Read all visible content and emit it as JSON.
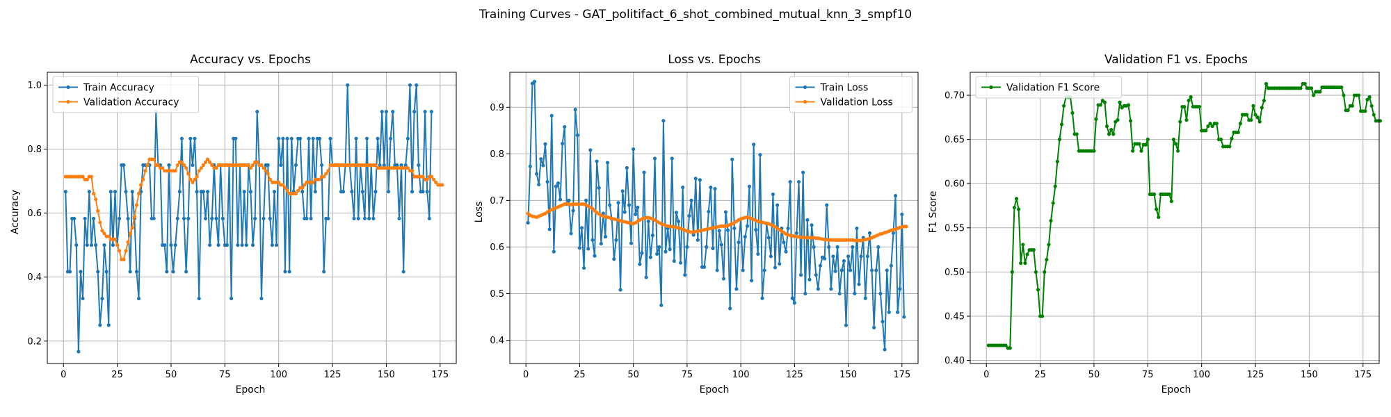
{
  "figure": {
    "suptitle": "Training Curves - GAT_politifact_6_shot_combined_mutual_knn_3_smpf10"
  },
  "chart_data": [
    {
      "type": "line",
      "title": "Accuracy vs. Epochs",
      "xlabel": "Epoch",
      "ylabel": "Accuracy",
      "xlim": [
        -7.5,
        182.5
      ],
      "ylim": [
        0.13,
        1.04
      ],
      "xticks": [
        0,
        25,
        50,
        75,
        100,
        125,
        150,
        175
      ],
      "yticks": [
        0.2,
        0.4,
        0.6,
        0.8,
        1.0
      ],
      "ytick_labels": [
        "0.2",
        "0.4",
        "0.6",
        "0.8",
        "1.0"
      ],
      "grid": true,
      "legend": "upper-left",
      "series": [
        {
          "name": "Train Accuracy",
          "color": "#1f77b4",
          "x_start": 1,
          "values": [
            0.667,
            0.417,
            0.417,
            0.583,
            0.583,
            0.5,
            0.167,
            0.417,
            0.333,
            0.583,
            0.5,
            0.667,
            0.5,
            0.583,
            0.5,
            0.417,
            0.25,
            0.333,
            0.5,
            0.417,
            0.25,
            0.667,
            0.5,
            0.667,
            0.5,
            0.583,
            0.75,
            0.75,
            0.667,
            0.583,
            0.417,
            0.667,
            0.583,
            0.417,
            0.333,
            0.667,
            0.75,
            0.75,
            0.75,
            0.75,
            0.583,
            0.583,
            0.917,
            0.75,
            0.75,
            0.5,
            0.5,
            0.417,
            0.75,
            0.5,
            0.417,
            0.5,
            0.583,
            0.667,
            0.833,
            0.583,
            0.417,
            0.583,
            0.833,
            0.75,
            0.833,
            0.667,
            0.333,
            0.667,
            0.667,
            0.583,
            0.667,
            0.5,
            0.583,
            0.75,
            0.583,
            0.5,
            0.75,
            0.583,
            0.5,
            0.5,
            0.75,
            0.333,
            0.833,
            0.833,
            0.5,
            0.75,
            0.5,
            0.667,
            0.5,
            0.75,
            0.667,
            0.5,
            0.583,
            0.917,
            0.75,
            0.333,
            0.583,
            0.75,
            0.75,
            0.583,
            0.5,
            0.667,
            0.5,
            0.833,
            0.75,
            0.833,
            0.417,
            0.833,
            0.417,
            0.833,
            0.667,
            0.75,
            0.833,
            0.833,
            0.667,
            0.583,
            0.583,
            0.833,
            0.583,
            0.833,
            0.667,
            0.833,
            0.833,
            0.75,
            0.417,
            0.583,
            0.583,
            0.833,
            0.75,
            0.75,
            0.75,
            0.75,
            0.667,
            0.667,
            0.75,
            1.0,
            0.75,
            0.667,
            0.583,
            0.833,
            0.583,
            0.75,
            0.667,
            0.583,
            0.833,
            0.583,
            0.75,
            0.583,
            0.667,
            0.833,
            0.75,
            0.917,
            0.75,
            0.917,
            0.667,
            0.833,
            0.917,
            0.75,
            0.75,
            0.583,
            0.75,
            0.417,
            0.75,
            0.833,
            1.0,
            0.667,
            0.917,
            1.0,
            0.75,
            0.667,
            0.667,
            0.917,
            0.667,
            0.583,
            0.917
          ]
        },
        {
          "name": "Validation Accuracy",
          "color": "#ff7f0e",
          "x_start": 1,
          "values": [
            0.714,
            0.714,
            0.714,
            0.714,
            0.714,
            0.714,
            0.714,
            0.714,
            0.714,
            0.705,
            0.705,
            0.714,
            0.714,
            0.661,
            0.643,
            0.607,
            0.571,
            0.545,
            0.536,
            0.527,
            0.527,
            0.518,
            0.518,
            0.518,
            0.5,
            0.482,
            0.455,
            0.455,
            0.482,
            0.509,
            0.536,
            0.554,
            0.589,
            0.625,
            0.661,
            0.688,
            0.705,
            0.732,
            0.75,
            0.768,
            0.768,
            0.768,
            0.75,
            0.75,
            0.741,
            0.741,
            0.732,
            0.732,
            0.732,
            0.732,
            0.732,
            0.732,
            0.75,
            0.759,
            0.759,
            0.75,
            0.741,
            0.723,
            0.705,
            0.696,
            0.705,
            0.714,
            0.732,
            0.741,
            0.75,
            0.759,
            0.768,
            0.759,
            0.75,
            0.741,
            0.741,
            0.75,
            0.75,
            0.75,
            0.75,
            0.75,
            0.75,
            0.75,
            0.75,
            0.75,
            0.75,
            0.75,
            0.75,
            0.75,
            0.75,
            0.75,
            0.741,
            0.75,
            0.759,
            0.759,
            0.75,
            0.75,
            0.741,
            0.732,
            0.723,
            0.705,
            0.696,
            0.696,
            0.696,
            0.696,
            0.688,
            0.688,
            0.679,
            0.67,
            0.661,
            0.661,
            0.661,
            0.661,
            0.67,
            0.679,
            0.679,
            0.688,
            0.696,
            0.696,
            0.696,
            0.696,
            0.705,
            0.705,
            0.705,
            0.714,
            0.714,
            0.723,
            0.732,
            0.75,
            0.75,
            0.75,
            0.75,
            0.75,
            0.75,
            0.75,
            0.75,
            0.75,
            0.75,
            0.75,
            0.75,
            0.75,
            0.75,
            0.75,
            0.75,
            0.75,
            0.75,
            0.75,
            0.75,
            0.75,
            0.75,
            0.741,
            0.741,
            0.741,
            0.741,
            0.741,
            0.741,
            0.741,
            0.741,
            0.741,
            0.741,
            0.741,
            0.741,
            0.741,
            0.741,
            0.741,
            0.732,
            0.732,
            0.714,
            0.714,
            0.714,
            0.714,
            0.714,
            0.705,
            0.705,
            0.714,
            0.714,
            0.705,
            0.696,
            0.688,
            0.688,
            0.688
          ]
        }
      ]
    },
    {
      "type": "line",
      "title": "Loss vs. Epochs",
      "xlabel": "Epoch",
      "ylabel": "Loss",
      "xlim": [
        -7.5,
        182.5
      ],
      "ylim": [
        0.35,
        0.975
      ],
      "xticks": [
        0,
        25,
        50,
        75,
        100,
        125,
        150,
        175
      ],
      "yticks": [
        0.4,
        0.5,
        0.6,
        0.7,
        0.8,
        0.9
      ],
      "ytick_labels": [
        "0.4",
        "0.5",
        "0.6",
        "0.7",
        "0.8",
        "0.9"
      ],
      "grid": true,
      "legend": "upper-right",
      "series": [
        {
          "name": "Train Loss",
          "color": "#1f77b4",
          "x_start": 1,
          "values": [
            0.652,
            0.773,
            0.951,
            0.955,
            0.757,
            0.734,
            0.789,
            0.775,
            0.821,
            0.74,
            0.638,
            0.882,
            0.59,
            0.73,
            0.737,
            0.702,
            0.822,
            0.858,
            0.692,
            0.7,
            0.629,
            0.678,
            0.895,
            0.84,
            0.598,
            0.641,
            0.555,
            0.7,
            0.596,
            0.808,
            0.615,
            0.581,
            0.784,
            0.727,
            0.607,
            0.672,
            0.622,
            0.781,
            0.69,
            0.66,
            0.574,
            0.615,
            0.695,
            0.508,
            0.72,
            0.675,
            0.77,
            0.69,
            0.608,
            0.81,
            0.67,
            0.685,
            0.563,
            0.587,
            0.76,
            0.535,
            0.655,
            0.578,
            0.625,
            0.79,
            0.585,
            0.6,
            0.475,
            0.871,
            0.59,
            0.64,
            0.595,
            0.79,
            0.57,
            0.674,
            0.655,
            0.566,
            0.728,
            0.54,
            0.6,
            0.667,
            0.7,
            0.626,
            0.747,
            0.615,
            0.744,
            0.557,
            0.557,
            0.6,
            0.676,
            0.728,
            0.597,
            0.725,
            0.55,
            0.635,
            0.605,
            0.532,
            0.675,
            0.636,
            0.468,
            0.788,
            0.64,
            0.51,
            0.61,
            0.66,
            0.55,
            0.622,
            0.645,
            0.73,
            0.528,
            0.82,
            0.637,
            0.585,
            0.798,
            0.49,
            0.55,
            0.65,
            0.62,
            0.58,
            0.713,
            0.556,
            0.69,
            0.564,
            0.64,
            0.61,
            0.59,
            0.64,
            0.74,
            0.49,
            0.48,
            0.63,
            0.74,
            0.54,
            0.76,
            0.5,
            0.658,
            0.53,
            0.647,
            0.6,
            0.54,
            0.51,
            0.56,
            0.578,
            0.575,
            0.69,
            0.6,
            0.51,
            0.58,
            0.548,
            0.6,
            0.5,
            0.55,
            0.57,
            0.432,
            0.58,
            0.55,
            0.6,
            0.5,
            0.64,
            0.52,
            0.58,
            0.62,
            0.49,
            0.58,
            0.63,
            0.55,
            0.427,
            0.55,
            0.6,
            0.5,
            0.44,
            0.38,
            0.55,
            0.46,
            0.56,
            0.63,
            0.71,
            0.46,
            0.51,
            0.67,
            0.45
          ]
        },
        {
          "name": "Validation Loss",
          "color": "#ff7f0e",
          "x_start": 1,
          "values": [
            0.672,
            0.668,
            0.666,
            0.665,
            0.664,
            0.666,
            0.668,
            0.67,
            0.672,
            0.675,
            0.678,
            0.68,
            0.682,
            0.684,
            0.686,
            0.688,
            0.69,
            0.692,
            0.693,
            0.692,
            0.691,
            0.692,
            0.692,
            0.692,
            0.692,
            0.692,
            0.692,
            0.69,
            0.688,
            0.685,
            0.682,
            0.678,
            0.674,
            0.671,
            0.668,
            0.666,
            0.665,
            0.664,
            0.663,
            0.661,
            0.66,
            0.659,
            0.658,
            0.656,
            0.655,
            0.654,
            0.653,
            0.652,
            0.651,
            0.65,
            0.652,
            0.655,
            0.658,
            0.66,
            0.662,
            0.663,
            0.663,
            0.662,
            0.66,
            0.658,
            0.655,
            0.652,
            0.65,
            0.648,
            0.646,
            0.645,
            0.644,
            0.644,
            0.643,
            0.642,
            0.641,
            0.64,
            0.638,
            0.636,
            0.634,
            0.633,
            0.632,
            0.632,
            0.633,
            0.634,
            0.635,
            0.636,
            0.637,
            0.638,
            0.639,
            0.64,
            0.641,
            0.642,
            0.643,
            0.644,
            0.645,
            0.645,
            0.645,
            0.646,
            0.648,
            0.65,
            0.652,
            0.655,
            0.658,
            0.66,
            0.662,
            0.663,
            0.664,
            0.663,
            0.661,
            0.659,
            0.657,
            0.655,
            0.654,
            0.653,
            0.652,
            0.651,
            0.65,
            0.648,
            0.646,
            0.643,
            0.64,
            0.637,
            0.634,
            0.631,
            0.628,
            0.626,
            0.625,
            0.624,
            0.623,
            0.622,
            0.622,
            0.621,
            0.621,
            0.62,
            0.62,
            0.62,
            0.62,
            0.62,
            0.619,
            0.619,
            0.618,
            0.617,
            0.616,
            0.616,
            0.615,
            0.615,
            0.615,
            0.615,
            0.615,
            0.615,
            0.615,
            0.615,
            0.615,
            0.615,
            0.615,
            0.615,
            0.614,
            0.614,
            0.614,
            0.614,
            0.615,
            0.616,
            0.617,
            0.618,
            0.62,
            0.622,
            0.624,
            0.626,
            0.628,
            0.629,
            0.631,
            0.632,
            0.634,
            0.636,
            0.637,
            0.638,
            0.64,
            0.642,
            0.643,
            0.644,
            0.644
          ]
        }
      ]
    },
    {
      "type": "line",
      "title": "Validation F1 vs. Epochs",
      "xlabel": "Epoch",
      "ylabel": "F1 Score",
      "xlim": [
        -7.5,
        182.5
      ],
      "ylim": [
        0.3965,
        0.726
      ],
      "xticks": [
        0,
        25,
        50,
        75,
        100,
        125,
        150,
        175
      ],
      "yticks": [
        0.4,
        0.45,
        0.5,
        0.55,
        0.6,
        0.65,
        0.7
      ],
      "ytick_labels": [
        "0.40",
        "0.45",
        "0.50",
        "0.55",
        "0.60",
        "0.65",
        "0.70"
      ],
      "grid": true,
      "legend": "upper-left",
      "series": [
        {
          "name": "Validation F1 Score",
          "color": "#008000",
          "x_start": 1,
          "values": [
            0.417,
            0.417,
            0.417,
            0.417,
            0.417,
            0.417,
            0.417,
            0.417,
            0.417,
            0.414,
            0.414,
            0.5,
            0.573,
            0.583,
            0.571,
            0.51,
            0.531,
            0.51,
            0.52,
            0.525,
            0.525,
            0.525,
            0.5,
            0.48,
            0.45,
            0.45,
            0.5,
            0.514,
            0.531,
            0.558,
            0.578,
            0.597,
            0.625,
            0.65,
            0.667,
            0.688,
            0.698,
            0.698,
            0.698,
            0.68,
            0.656,
            0.656,
            0.637,
            0.637,
            0.637,
            0.637,
            0.637,
            0.637,
            0.637,
            0.637,
            0.673,
            0.689,
            0.689,
            0.694,
            0.692,
            0.665,
            0.656,
            0.661,
            0.656,
            0.67,
            0.672,
            0.692,
            0.686,
            0.688,
            0.688,
            0.689,
            0.671,
            0.637,
            0.645,
            0.645,
            0.645,
            0.637,
            0.644,
            0.644,
            0.65,
            0.588,
            0.588,
            0.588,
            0.571,
            0.562,
            0.588,
            0.588,
            0.588,
            0.588,
            0.588,
            0.58,
            0.65,
            0.645,
            0.637,
            0.67,
            0.687,
            0.687,
            0.672,
            0.694,
            0.698,
            0.687,
            0.687,
            0.687,
            0.687,
            0.66,
            0.66,
            0.66,
            0.665,
            0.668,
            0.665,
            0.668,
            0.668,
            0.65,
            0.65,
            0.642,
            0.642,
            0.642,
            0.642,
            0.651,
            0.658,
            0.658,
            0.658,
            0.668,
            0.678,
            0.678,
            0.678,
            0.672,
            0.672,
            0.688,
            0.678,
            0.675,
            0.67,
            0.686,
            0.694,
            0.713,
            0.708,
            0.708,
            0.708,
            0.708,
            0.708,
            0.708,
            0.708,
            0.708,
            0.708,
            0.708,
            0.708,
            0.708,
            0.708,
            0.708,
            0.708,
            0.708,
            0.713,
            0.713,
            0.708,
            0.708,
            0.708,
            0.7,
            0.704,
            0.704,
            0.704,
            0.709,
            0.709,
            0.709,
            0.709,
            0.709,
            0.709,
            0.709,
            0.709,
            0.709,
            0.709,
            0.7,
            0.683,
            0.683,
            0.688,
            0.688,
            0.7,
            0.7,
            0.7,
            0.682,
            0.682,
            0.682,
            0.695,
            0.698,
            0.688,
            0.678,
            0.671,
            0.671,
            0.671
          ]
        }
      ]
    }
  ]
}
